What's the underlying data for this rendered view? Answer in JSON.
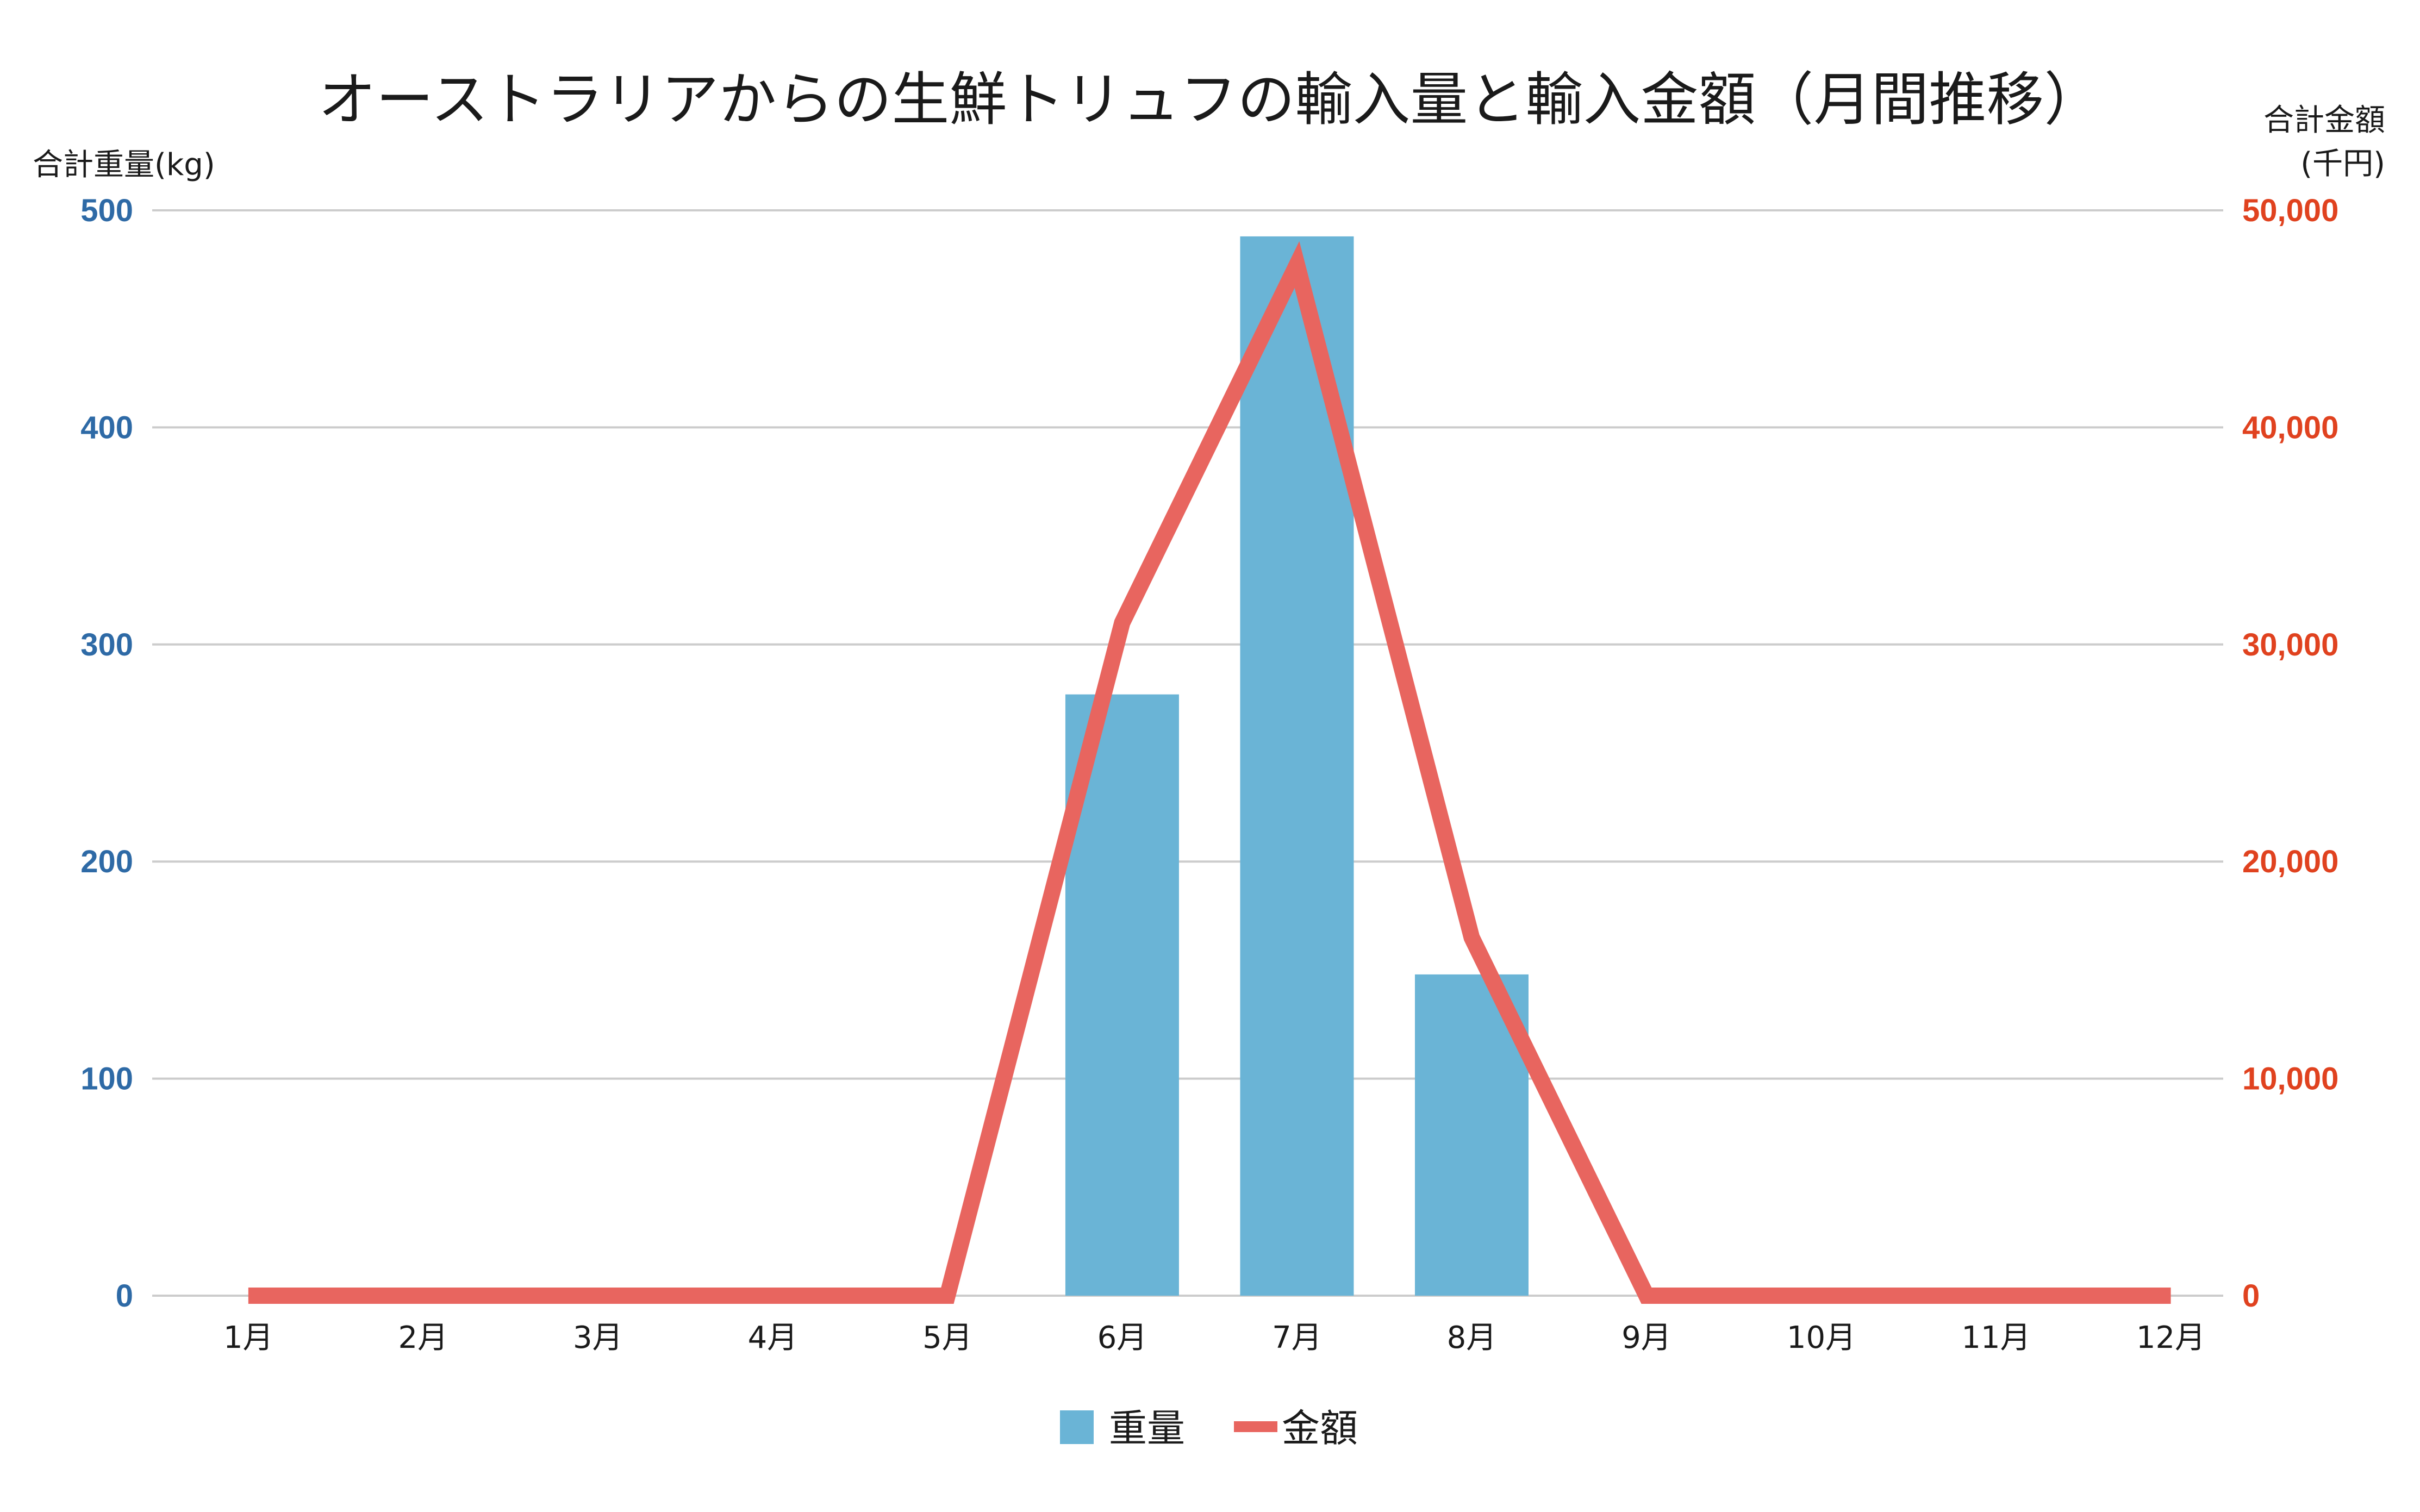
{
  "chart_data": {
    "type": "bar",
    "title": "オーストラリアからの生鮮トリュフの輸入量と輸入金額（月間推移）",
    "categories": [
      "1月",
      "2月",
      "3月",
      "4月",
      "5月",
      "6月",
      "7月",
      "8月",
      "9月",
      "10月",
      "11月",
      "12月"
    ],
    "series": [
      {
        "name": "重量",
        "type": "bar",
        "axis": "left",
        "color": "#6ab4d6",
        "values": [
          0,
          0,
          0,
          0,
          0,
          277,
          488,
          148,
          0,
          0,
          0,
          0
        ]
      },
      {
        "name": "金額",
        "type": "line",
        "axis": "right",
        "color": "#e8655f",
        "values": [
          0,
          0,
          0,
          0,
          0,
          31000,
          47500,
          16500,
          0,
          0,
          0,
          0
        ]
      }
    ],
    "y_left": {
      "label": "合計重量(kg)",
      "lim": [
        0,
        500
      ],
      "ticks": [
        "0",
        "100",
        "200",
        "300",
        "400",
        "500"
      ],
      "color": "#2e6aa6"
    },
    "y_right": {
      "label_line1": "合計金額",
      "label_line2": "(千円)",
      "lim": [
        0,
        50000
      ],
      "ticks": [
        "0",
        "10,000",
        "20,000",
        "30,000",
        "40,000",
        "50,000"
      ],
      "color": "#e0421f"
    },
    "grid": true,
    "gridline_color": "#cccccc",
    "legend_position": "bottom"
  }
}
